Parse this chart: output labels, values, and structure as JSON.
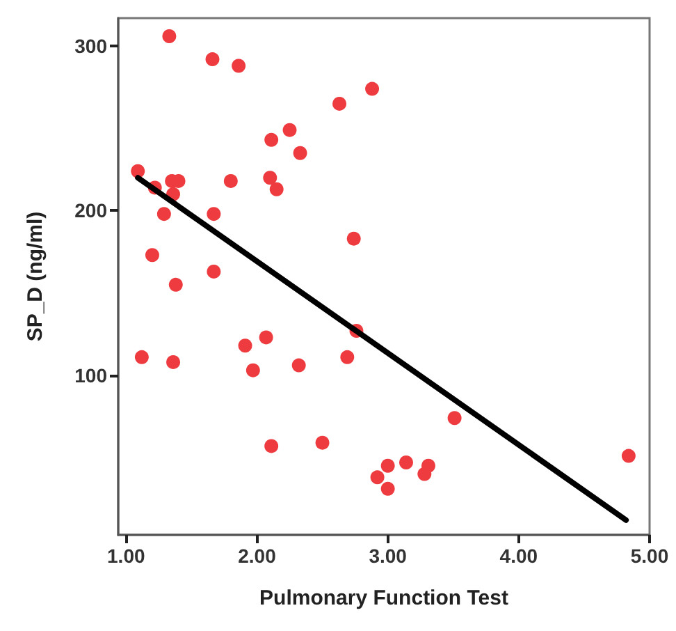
{
  "chart_data": {
    "type": "scatter",
    "xlabel": "Pulmonary Function Test",
    "ylabel": "SP_D (ng/ml)",
    "xlim": [
      0.94,
      5.0
    ],
    "ylim": [
      3,
      317
    ],
    "xticks": [
      {
        "value": 1,
        "label": "1.00"
      },
      {
        "value": 2,
        "label": "2.00"
      },
      {
        "value": 3,
        "label": "3.00"
      },
      {
        "value": 4,
        "label": "4.00"
      },
      {
        "value": 5,
        "label": "5.00"
      }
    ],
    "yticks": [
      100,
      200,
      300
    ],
    "grid": false,
    "marker": "circle",
    "series": [
      {
        "color": "#ee3b3f",
        "x": [
          1.33,
          1.66,
          1.86,
          2.88,
          2.63,
          2.25,
          2.11,
          2.33,
          1.09,
          1.35,
          1.4,
          1.8,
          2.1,
          2.15,
          1.22,
          1.36,
          1.29,
          1.67,
          2.74,
          1.2,
          1.67,
          1.38,
          2.76,
          2.07,
          1.91,
          1.12,
          1.36,
          1.97,
          2.32,
          2.69,
          2.11,
          2.5,
          3.51,
          4.84,
          3.0,
          3.14,
          3.31,
          3.28,
          2.92,
          3.0
        ],
        "values": [
          306,
          292,
          288,
          274,
          265,
          249,
          243,
          235,
          224,
          218,
          218,
          218,
          220,
          213,
          214,
          210,
          198,
          198,
          183,
          173,
          163,
          155,
          127,
          123,
          118,
          111,
          108,
          103,
          106,
          111,
          57,
          59,
          74,
          51,
          45,
          47,
          45,
          40,
          38,
          31
        ]
      },
      {
        "type": "line",
        "color": "#000000",
        "x": [
          1.09,
          4.82
        ],
        "values": [
          220,
          12
        ],
        "marker": "none",
        "line_style": "solid"
      }
    ]
  }
}
